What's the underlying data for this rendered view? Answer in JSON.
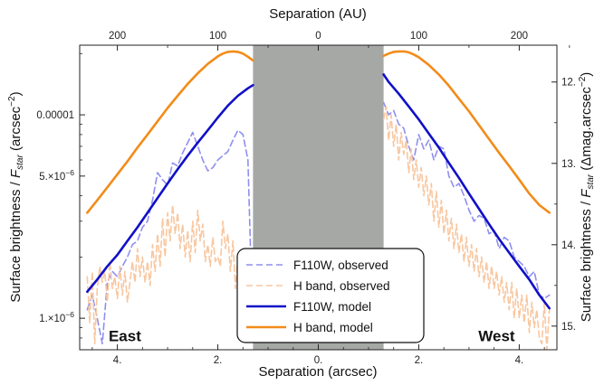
{
  "chart_data": {
    "type": "line",
    "x_bottom": {
      "label": "Separation (arcsec)",
      "range": [
        4.75,
        -4.75
      ],
      "ticks": [
        {
          "value": 4,
          "label": "4."
        },
        {
          "value": 2,
          "label": "2."
        },
        {
          "value": 0,
          "label": "0."
        },
        {
          "value": -2,
          "label": "2."
        },
        {
          "value": -4,
          "label": "4."
        }
      ]
    },
    "x_top": {
      "label": "Separation (AU)",
      "ticks": [
        {
          "value": 200,
          "label": "200"
        },
        {
          "value": 100,
          "label": "100"
        },
        {
          "value": 0,
          "label": "0"
        },
        {
          "value": -100,
          "label": "100"
        },
        {
          "value": -200,
          "label": "200"
        }
      ]
    },
    "y_left": {
      "label_main": "Surface brightness / ",
      "label_f": "F",
      "label_sub": "star",
      "label_unit": " (arcsec",
      "label_sup": "−2",
      "label_end": ")",
      "scale": "log",
      "range": [
        7e-07,
        2.2e-05
      ],
      "ticks": [
        {
          "value": 1e-05,
          "label": "0.00001"
        },
        {
          "value": 5e-06,
          "label": "5.×10",
          "sup": "−6"
        },
        {
          "value": 1e-06,
          "label": "1.×10",
          "sup": "−6"
        }
      ]
    },
    "y_right": {
      "label_main": "Surface brightness / ",
      "label_f": "F",
      "label_sub": "star",
      "label_unit": " (Δmag.arcsec",
      "label_sup": "−2",
      "label_end": ")",
      "ticks": [
        {
          "value": 12,
          "label": "12."
        },
        {
          "value": 13,
          "label": "13."
        },
        {
          "value": 14,
          "label": "14."
        },
        {
          "value": 15,
          "label": "15."
        }
      ]
    },
    "masked_region": {
      "x": [
        -1.3,
        1.3
      ],
      "color": "#a6a8a6"
    },
    "annotations": [
      {
        "text": "East",
        "x": 3.85,
        "y": 8.2e-07
      },
      {
        "text": "West",
        "x": -3.55,
        "y": 8.2e-07
      }
    ],
    "legend_position": "lower-center",
    "series": [
      {
        "name": "F110W, observed",
        "color": "#8f8ff0",
        "style": "dashed",
        "segments": [
          {
            "x": [
              4.6,
              4.5,
              4.4,
              4.3,
              4.2,
              4.1,
              4.0,
              3.9,
              3.8,
              3.7,
              3.6,
              3.5,
              3.4,
              3.3,
              3.2,
              3.1,
              3.0,
              2.9,
              2.8,
              2.7,
              2.6,
              2.5,
              2.4,
              2.3,
              2.2,
              2.1,
              2.0,
              1.9,
              1.8,
              1.7,
              1.6,
              1.5,
              1.4,
              1.35
            ],
            "y": [
              1.1e-06,
              1.3e-06,
              1e-06,
              7.5e-07,
              1.5e-06,
              1.7e-06,
              1.6e-06,
              1.8e-06,
              2e-06,
              2.3e-06,
              2.4e-06,
              2.8e-06,
              3e-06,
              3.8e-06,
              5.2e-06,
              4.8e-06,
              4.5e-06,
              5.8e-06,
              5.6e-06,
              6.5e-06,
              7.3e-06,
              8.2e-06,
              7e-06,
              6e-06,
              5.3e-06,
              5.5e-06,
              6e-06,
              6.3e-06,
              6.6e-06,
              7.5e-06,
              8.4e-06,
              8e-06,
              6e-06,
              2.2e-06
            ]
          },
          {
            "x": [
              -1.3,
              -1.4,
              -1.5,
              -1.6,
              -1.7,
              -1.8,
              -1.9,
              -2.0,
              -2.1,
              -2.2,
              -2.3,
              -2.4,
              -2.5,
              -2.6,
              -2.7,
              -2.8,
              -2.9,
              -3.0,
              -3.1,
              -3.2,
              -3.3,
              -3.4,
              -3.5,
              -3.6,
              -3.7,
              -3.8,
              -3.9,
              -4.0,
              -4.1,
              -4.2,
              -4.3,
              -4.4,
              -4.5,
              -4.6
            ],
            "y": [
              1.15e-05,
              1e-05,
              1.05e-05,
              9e-06,
              8.6e-06,
              7e-06,
              6e-06,
              8e-06,
              6.8e-06,
              7.5e-06,
              6e-06,
              7e-06,
              6.8e-06,
              5e-06,
              4.4e-06,
              4.6e-06,
              4e-06,
              3.4e-06,
              3e-06,
              3.2e-06,
              3.1e-06,
              2.6e-06,
              2.7e-06,
              2.2e-06,
              2.5e-06,
              2.4e-06,
              2e-06,
              1.9e-06,
              1.8e-06,
              1.6e-06,
              1.7e-06,
              1.3e-06,
              1.25e-06,
              1.3e-06
            ]
          }
        ]
      },
      {
        "name": "H band, observed",
        "color": "#f8c7a0",
        "style": "dashed",
        "segments": [
          {
            "x": [
              4.6,
              4.55,
              4.5,
              4.45,
              4.4,
              4.35,
              4.3,
              4.25,
              4.2,
              4.15,
              4.1,
              4.05,
              4.0,
              3.95,
              3.9,
              3.85,
              3.8,
              3.75,
              3.7,
              3.65,
              3.6,
              3.55,
              3.5,
              3.45,
              3.4,
              3.35,
              3.3,
              3.25,
              3.2,
              3.15,
              3.1,
              3.05,
              3.0,
              2.95,
              2.9,
              2.85,
              2.8,
              2.75,
              2.7,
              2.65,
              2.6,
              2.55,
              2.5,
              2.45,
              2.4,
              2.35,
              2.3,
              2.25,
              2.2,
              2.15,
              2.1,
              2.05,
              2.0,
              1.95,
              1.9,
              1.85,
              1.8,
              1.75,
              1.7,
              1.65,
              1.6,
              1.55,
              1.5,
              1.45,
              1.4,
              1.35
            ],
            "y": [
              1.6e-06,
              9.5e-07,
              1.7e-06,
              7.5e-07,
              1.4e-06,
              1.8e-06,
              1.5e-06,
              1.7e-06,
              1.2e-06,
              1.9e-06,
              1.4e-06,
              1.6e-06,
              1.25e-06,
              1.8e-06,
              1.3e-06,
              1.7e-06,
              1.2e-06,
              1.5e-06,
              1.9e-06,
              1.5e-06,
              2.2e-06,
              1.6e-06,
              2e-06,
              1.5e-06,
              1.9e-06,
              1.45e-06,
              2.3e-06,
              1.7e-06,
              2.6e-06,
              1.8e-06,
              3.1e-06,
              2e-06,
              3.3e-06,
              2.4e-06,
              3.6e-06,
              2.6e-06,
              3.3e-06,
              2.2e-06,
              2.9e-06,
              2e-06,
              2.7e-06,
              1.9e-06,
              3e-06,
              2.1e-06,
              3.4e-06,
              2.4e-06,
              2.9e-06,
              1.9e-06,
              2.3e-06,
              1.8e-06,
              2.5e-06,
              1.9e-06,
              2e-06,
              1.8e-06,
              3e-06,
              2.2e-06,
              2.6e-06,
              1.7e-06,
              2.4e-06,
              1.4e-06,
              2e-06,
              1.2e-06,
              1.9e-06,
              1.5e-06,
              2.2e-06,
              1.5e-06
            ]
          },
          {
            "x": [
              -1.3,
              -1.35,
              -1.4,
              -1.45,
              -1.5,
              -1.55,
              -1.6,
              -1.65,
              -1.7,
              -1.75,
              -1.8,
              -1.85,
              -1.9,
              -1.95,
              -2.0,
              -2.05,
              -2.1,
              -2.15,
              -2.2,
              -2.25,
              -2.3,
              -2.35,
              -2.4,
              -2.45,
              -2.5,
              -2.55,
              -2.6,
              -2.65,
              -2.7,
              -2.75,
              -2.8,
              -2.85,
              -2.9,
              -2.95,
              -3.0,
              -3.05,
              -3.1,
              -3.15,
              -3.2,
              -3.25,
              -3.3,
              -3.35,
              -3.4,
              -3.45,
              -3.5,
              -3.55,
              -3.6,
              -3.65,
              -3.7,
              -3.75,
              -3.8,
              -3.85,
              -3.9,
              -3.95,
              -4.0,
              -4.05,
              -4.1,
              -4.15,
              -4.2,
              -4.25,
              -4.3,
              -4.35,
              -4.4,
              -4.45,
              -4.5,
              -4.55,
              -4.6
            ],
            "y": [
              9.5e-06,
              1.1e-05,
              7.5e-06,
              1e-05,
              7e-06,
              9e-06,
              6e-06,
              8.2e-06,
              6.4e-06,
              7.5e-06,
              5.2e-06,
              6.8e-06,
              4.8e-06,
              6e-06,
              4.4e-06,
              5.5e-06,
              4e-06,
              5e-06,
              3.6e-06,
              4.6e-06,
              3e-06,
              4.2e-06,
              2.8e-06,
              3.8e-06,
              2.6e-06,
              3.4e-06,
              2.4e-06,
              3.1e-06,
              2.2e-06,
              2.9e-06,
              2.1e-06,
              2.6e-06,
              1.9e-06,
              2.5e-06,
              1.8e-06,
              2.3e-06,
              1.7e-06,
              2.2e-06,
              1.6e-06,
              2e-06,
              1.5e-06,
              1.9e-06,
              1.4e-06,
              1.8e-06,
              1.4e-06,
              1.7e-06,
              1.3e-06,
              1.6e-06,
              1.2e-06,
              1.5e-06,
              1.1e-06,
              1.5e-06,
              1e-06,
              1.4e-06,
              1e-06,
              1.3e-06,
              9.5e-07,
              1.3e-06,
              8.5e-07,
              1.2e-06,
              9e-07,
              1.1e-06,
              8e-07,
              7.5e-07,
              1.2e-06,
              7e-07,
              1.1e-06
            ]
          }
        ]
      },
      {
        "name": "F110W, model",
        "color": "#1010c8",
        "style": "solid",
        "segments": [
          {
            "x": [
              4.6,
              4.4,
              4.2,
              4.0,
              3.8,
              3.6,
              3.4,
              3.2,
              3.0,
              2.8,
              2.6,
              2.4,
              2.2,
              2.0,
              1.8,
              1.6,
              1.4,
              1.3
            ],
            "y": [
              1.35e-06,
              1.55e-06,
              1.8e-06,
              2.05e-06,
              2.4e-06,
              2.8e-06,
              3.3e-06,
              3.9e-06,
              4.6e-06,
              5.4e-06,
              6.3e-06,
              7.3e-06,
              8.4e-06,
              9.7e-06,
              1.11e-05,
              1.24e-05,
              1.35e-05,
              1.4e-05
            ]
          },
          {
            "x": [
              -1.3,
              -1.4,
              -1.6,
              -1.8,
              -2.0,
              -2.2,
              -2.4,
              -2.6,
              -2.8,
              -3.0,
              -3.2,
              -3.4,
              -3.6,
              -3.8,
              -4.0,
              -4.2,
              -4.4,
              -4.6
            ],
            "y": [
              1.58e-05,
              1.45e-05,
              1.27e-05,
              1.1e-05,
              9.5e-06,
              8.1e-06,
              6.9e-06,
              5.8e-06,
              4.9e-06,
              4.1e-06,
              3.45e-06,
              2.9e-06,
              2.45e-06,
              2.1e-06,
              1.8e-06,
              1.55e-06,
              1.3e-06,
              1.12e-06
            ]
          }
        ]
      },
      {
        "name": "H band, model",
        "color": "#f28c1a",
        "style": "solid",
        "segments": [
          {
            "x": [
              4.6,
              4.4,
              4.2,
              4.0,
              3.8,
              3.6,
              3.4,
              3.2,
              3.0,
              2.8,
              2.6,
              2.4,
              2.2,
              2.0,
              1.9,
              1.8,
              1.7,
              1.6,
              1.5,
              1.4,
              1.3
            ],
            "y": [
              3.3e-06,
              3.8e-06,
              4.4e-06,
              5.1e-06,
              5.9e-06,
              6.9e-06,
              8e-06,
              9.3e-06,
              1.08e-05,
              1.24e-05,
              1.42e-05,
              1.6e-05,
              1.78e-05,
              1.94e-05,
              2e-05,
              2.04e-05,
              2.05e-05,
              2.04e-05,
              2e-05,
              1.93e-05,
              1.85e-05
            ]
          },
          {
            "x": [
              -1.3,
              -1.4,
              -1.5,
              -1.6,
              -1.7,
              -1.8,
              -1.9,
              -2.0,
              -2.2,
              -2.4,
              -2.6,
              -2.8,
              -3.0,
              -3.2,
              -3.4,
              -3.6,
              -3.8,
              -4.0,
              -4.2,
              -4.4,
              -4.6
            ],
            "y": [
              1.95e-05,
              2e-05,
              2.04e-05,
              2.05e-05,
              2.05e-05,
              2.03e-05,
              1.98e-05,
              1.92e-05,
              1.76e-05,
              1.58e-05,
              1.39e-05,
              1.2e-05,
              1.04e-05,
              8.9e-06,
              7.6e-06,
              6.5e-06,
              5.6e-06,
              4.8e-06,
              4.1e-06,
              3.6e-06,
              3.3e-06
            ]
          }
        ]
      }
    ]
  }
}
